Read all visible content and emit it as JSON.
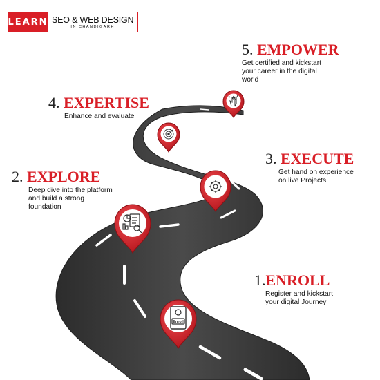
{
  "brand": {
    "logo_word": "LEARN",
    "title": "SEO & WEB DESIGN",
    "subtitle": "IN CHANDIGARH"
  },
  "steps": [
    {
      "number": "1.",
      "word": "ENROLL",
      "desc": [
        "Register and kickstart",
        "your digital Journey"
      ],
      "icon": "enroll-icon"
    },
    {
      "number": "2.",
      "word": "EXPLORE",
      "desc": [
        "Deep dive into the platform",
        "and build a strong",
        "foundation"
      ],
      "icon": "analysis-icon"
    },
    {
      "number": "3.",
      "word": "EXECUTE",
      "desc": [
        "Get hand on experience",
        "on live Projects"
      ],
      "icon": "gear-icon"
    },
    {
      "number": "4.",
      "word": "EXPERTISE",
      "desc": [
        "Enhance and evaluate"
      ],
      "icon": "target-icon"
    },
    {
      "number": "5.",
      "word": "EMPOWER",
      "desc": [
        "Get certified and kickstart",
        "your career in the digital",
        "world"
      ],
      "icon": "hand-icon"
    }
  ],
  "enroll_badge_text": "Enroll",
  "colors": {
    "accent": "#d91e26",
    "road": "#3a3a3a",
    "pin": "#d91e26"
  }
}
